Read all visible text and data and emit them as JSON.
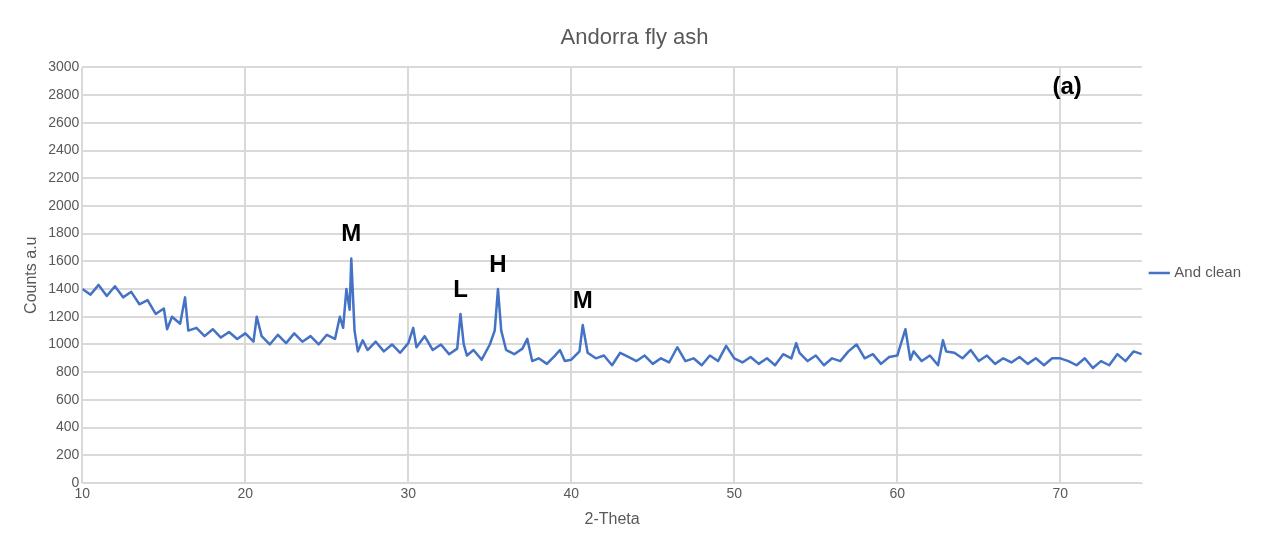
{
  "chart_data": {
    "type": "line",
    "title": "Andorra fly ash",
    "xlabel": "2-Theta",
    "ylabel": "Counts a.u",
    "xlim": [
      10,
      75
    ],
    "xticks": [
      10,
      20,
      30,
      40,
      50,
      60,
      70
    ],
    "ylim": [
      0,
      3000
    ],
    "yticks": [
      0,
      200,
      400,
      600,
      800,
      1000,
      1200,
      1400,
      1600,
      1800,
      2000,
      2200,
      2400,
      2600,
      2800,
      3000
    ],
    "grid": true,
    "legend": "right",
    "marker": "none",
    "line_style": "solid",
    "x": [
      10,
      10.5,
      11,
      11.5,
      12,
      12.5,
      13,
      13.5,
      14,
      14.5,
      15,
      15.2,
      15.5,
      16,
      16.3,
      16.5,
      17,
      17.5,
      18,
      18.5,
      19,
      19.5,
      20,
      20.5,
      20.7,
      21,
      21.5,
      22,
      22.5,
      23,
      23.5,
      24,
      24.5,
      25,
      25.5,
      25.8,
      26,
      26.2,
      26.4,
      26.5,
      26.7,
      26.9,
      27.2,
      27.5,
      28,
      28.5,
      29,
      29.5,
      30,
      30.3,
      30.5,
      31,
      31.5,
      32,
      32.5,
      33,
      33.2,
      33.4,
      33.6,
      34,
      34.5,
      35,
      35.3,
      35.5,
      35.7,
      36,
      36.5,
      37,
      37.3,
      37.6,
      38,
      38.5,
      39,
      39.3,
      39.6,
      40,
      40.5,
      40.7,
      41,
      41.5,
      42,
      42.5,
      43,
      43.5,
      44,
      44.5,
      45,
      45.5,
      46,
      46.5,
      47,
      47.5,
      48,
      48.5,
      49,
      49.5,
      50,
      50.5,
      51,
      51.5,
      52,
      52.5,
      53,
      53.5,
      53.8,
      54,
      54.5,
      55,
      55.5,
      56,
      56.5,
      57,
      57.5,
      58,
      58.5,
      59,
      59.5,
      60,
      60.5,
      60.8,
      61,
      61.5,
      62,
      62.5,
      62.8,
      63,
      63.5,
      64,
      64.5,
      65,
      65.5,
      66,
      66.5,
      67,
      67.5,
      68,
      68.5,
      69,
      69.5,
      70,
      70.5,
      71,
      71.5,
      72,
      72.5,
      73,
      73.5,
      74,
      74.5,
      75
    ],
    "series": [
      {
        "name": "And clean",
        "color": "#4472c4",
        "values": [
          1400,
          1360,
          1430,
          1350,
          1420,
          1340,
          1380,
          1290,
          1320,
          1220,
          1260,
          1110,
          1200,
          1150,
          1340,
          1100,
          1120,
          1060,
          1110,
          1050,
          1090,
          1040,
          1080,
          1020,
          1200,
          1060,
          1000,
          1070,
          1010,
          1080,
          1020,
          1060,
          1000,
          1070,
          1040,
          1200,
          1120,
          1400,
          1250,
          1620,
          1100,
          950,
          1030,
          960,
          1020,
          950,
          1000,
          940,
          1010,
          1120,
          980,
          1060,
          960,
          1000,
          930,
          970,
          1220,
          1000,
          920,
          960,
          890,
          1000,
          1100,
          1400,
          1100,
          960,
          930,
          970,
          1040,
          880,
          900,
          860,
          920,
          960,
          880,
          890,
          950,
          1140,
          940,
          900,
          920,
          850,
          940,
          910,
          880,
          920,
          860,
          900,
          870,
          980,
          880,
          900,
          850,
          920,
          880,
          990,
          900,
          870,
          910,
          860,
          900,
          850,
          930,
          900,
          1010,
          940,
          880,
          920,
          850,
          900,
          880,
          950,
          1000,
          900,
          930,
          860,
          910,
          920,
          1110,
          890,
          950,
          880,
          920,
          850,
          1030,
          950,
          940,
          900,
          960,
          880,
          920,
          860,
          900,
          870,
          910,
          860,
          900,
          850,
          900,
          900,
          880,
          850,
          900,
          830,
          880,
          850,
          930,
          880,
          950,
          930
        ]
      }
    ],
    "annotations": [
      {
        "text": "M",
        "x": 26.5,
        "y": 1620
      },
      {
        "text": "L",
        "x": 33.2,
        "y": 1220
      },
      {
        "text": "H",
        "x": 35.5,
        "y": 1400
      },
      {
        "text": "M",
        "x": 40.7,
        "y": 1140
      },
      "(a)"
    ]
  }
}
